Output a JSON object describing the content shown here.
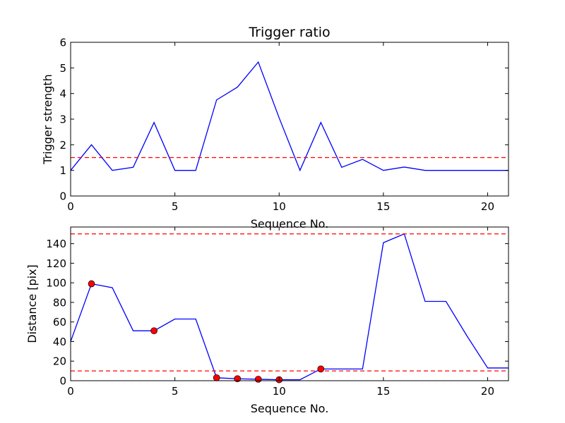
{
  "chart_data": [
    {
      "type": "line",
      "title": "Trigger ratio",
      "xlabel": "Sequence No.",
      "ylabel": "Trigger strength",
      "xlim": [
        0,
        21
      ],
      "ylim": [
        0,
        6
      ],
      "xticks": [
        0,
        5,
        10,
        15,
        20
      ],
      "yticks": [
        0,
        1,
        2,
        3,
        4,
        5,
        6
      ],
      "series": [
        {
          "color": "#0000ff",
          "x": [
            0,
            1,
            2,
            3,
            4,
            5,
            6,
            7,
            8,
            9,
            10,
            11,
            12,
            13,
            14,
            15,
            16,
            17,
            18,
            19,
            20,
            21
          ],
          "values": [
            1.0,
            2.0,
            1.0,
            1.12,
            2.87,
            1.0,
            1.0,
            3.75,
            4.25,
            5.23,
            3.05,
            1.0,
            2.87,
            1.12,
            1.43,
            1.0,
            1.13,
            1.0,
            1.0,
            1.0,
            1.0,
            1.0
          ]
        }
      ],
      "hlines": [
        {
          "y": 1.5,
          "color": "#ff0000",
          "style": "dashed"
        }
      ]
    },
    {
      "type": "line",
      "title": "",
      "xlabel": "Sequence No.",
      "ylabel": "Distance [pix]",
      "xlim": [
        0,
        21
      ],
      "ylim": [
        0,
        157
      ],
      "xticks": [
        0,
        5,
        10,
        15,
        20
      ],
      "yticks": [
        0,
        20,
        40,
        60,
        80,
        100,
        120,
        140
      ],
      "series": [
        {
          "color": "#0000ff",
          "x": [
            0,
            1,
            2,
            3,
            4,
            5,
            6,
            7,
            8,
            9,
            10,
            11,
            12,
            13,
            14,
            15,
            16,
            17,
            18,
            19,
            20,
            21
          ],
          "values": [
            40,
            99,
            95,
            51,
            51,
            63,
            63,
            3,
            2,
            1.5,
            1,
            1,
            12,
            12,
            12,
            141,
            150,
            81,
            81,
            46,
            13,
            13
          ]
        }
      ],
      "markers": {
        "color": "#ff0000",
        "x": [
          1,
          4,
          7,
          8,
          9,
          10,
          12
        ],
        "y": [
          99,
          51,
          3,
          2,
          1.5,
          1,
          12
        ]
      },
      "hlines": [
        {
          "y": 150,
          "color": "#ff0000",
          "style": "dashed"
        },
        {
          "y": 10,
          "color": "#ff0000",
          "style": "dashed"
        }
      ]
    }
  ]
}
